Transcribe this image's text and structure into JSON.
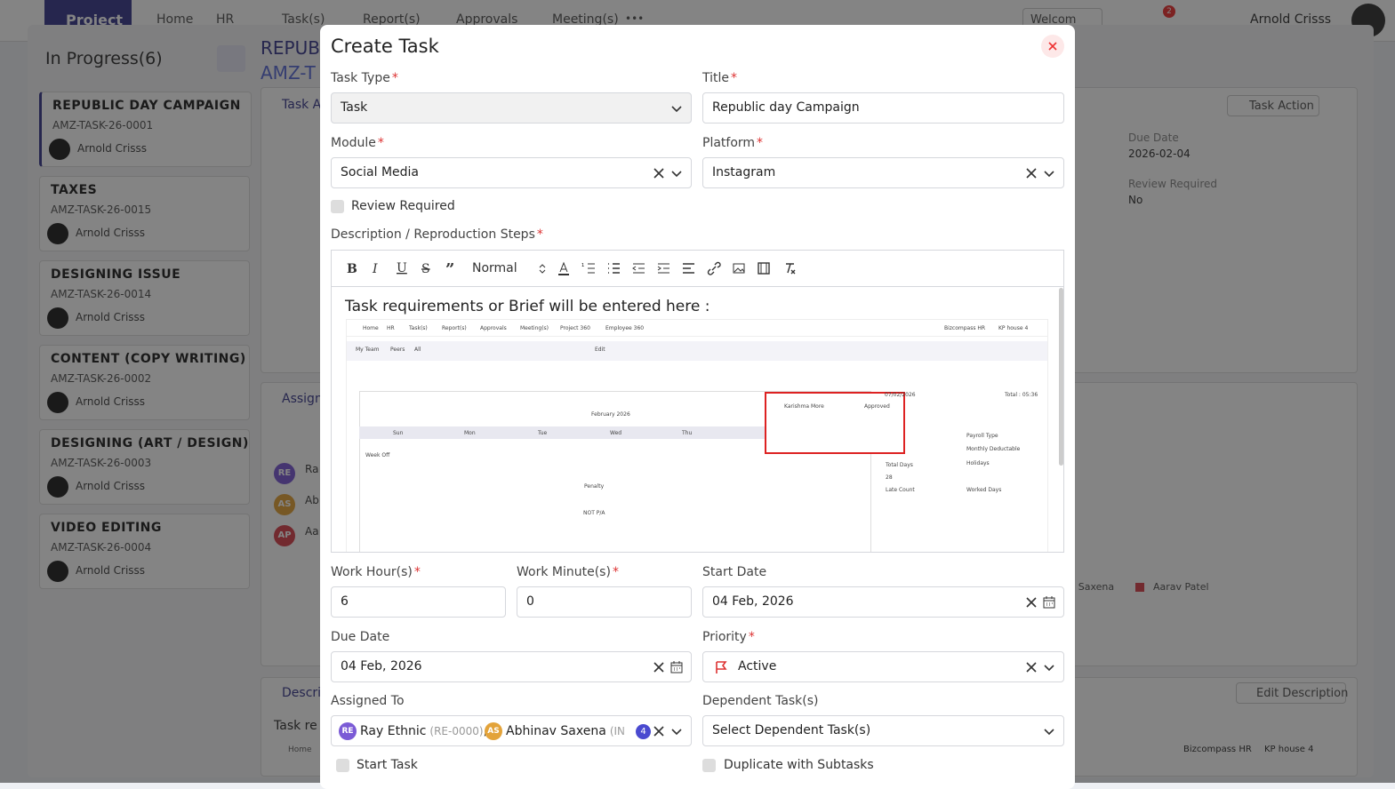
{
  "nav": {
    "brand": "Project",
    "items": [
      "Home",
      "HR",
      "Task(s)",
      "Report(s)",
      "Approvals",
      "Meeting(s)"
    ],
    "more": "•••",
    "workspace": "Welcom",
    "badge": "2",
    "user": "Arnold Crisss"
  },
  "sidebar": {
    "status": "In Progress(6)",
    "tasks": [
      {
        "title": "REPUBLIC DAY CAMPAIGN",
        "code": "AMZ-TASK-26-0001",
        "assignee": "Arnold Crisss"
      },
      {
        "title": "TAXES",
        "code": "AMZ-TASK-26-0015",
        "assignee": "Arnold Crisss"
      },
      {
        "title": "DESIGNING ISSUE",
        "code": "AMZ-TASK-26-0014",
        "assignee": "Arnold Crisss"
      },
      {
        "title": "CONTENT (COPY WRITING)",
        "code": "AMZ-TASK-26-0002",
        "assignee": "Arnold Crisss"
      },
      {
        "title": "DESIGNING (ART / DESIGN)",
        "code": "AMZ-TASK-26-0003",
        "assignee": "Arnold Crisss"
      },
      {
        "title": "VIDEO EDITING",
        "code": "AMZ-TASK-26-0004",
        "assignee": "Arnold Crisss"
      }
    ]
  },
  "detail": {
    "title_fragment": "REPUBL",
    "code_fragment": "AMZ-T",
    "tab_fragment": "Task A",
    "task_action": "Task Action",
    "due_date_label": "Due Date",
    "due_date": "2026-02-04",
    "review_label": "Review Required",
    "review_value": "No",
    "assign_fragment": "Assign",
    "assignees": [
      {
        "initials": "RE",
        "fragment": "Ra"
      },
      {
        "initials": "AS",
        "fragment": "Ab"
      },
      {
        "initials": "AP",
        "fragment": "Aa"
      }
    ],
    "legend": [
      "av Saxena",
      "Aarav Patel"
    ],
    "description_fragment": "Descri",
    "edit_description": "Edit Description",
    "description_text_fragment": "Task re",
    "preview": [
      "Home",
      "Bizcompass HR",
      "KP house 4"
    ]
  },
  "modal": {
    "title": "Create Task",
    "required_mark": "*",
    "fields": [
      {
        "label": "Task Type",
        "value": "Task",
        "required": true
      },
      {
        "label": "Title",
        "value": "Republic day Campaign",
        "required": true
      },
      {
        "label": "Module",
        "value": "Social Media",
        "required": true
      },
      {
        "label": "Platform",
        "value": "Instagram",
        "required": true
      },
      {
        "label": "Work Hour(s)",
        "value": "6",
        "required": true
      },
      {
        "label": "Work Minute(s)",
        "value": "0",
        "required": true
      },
      {
        "label": "Start Date",
        "value": "04 Feb, 2026",
        "required": false
      },
      {
        "label": "Due Date",
        "value": "04 Feb, 2026",
        "required": false
      },
      {
        "label": "Priority",
        "value": "Active",
        "required": true
      },
      {
        "label": "Dependent Task(s)",
        "value": "Select Dependent Task(s)",
        "required": false
      }
    ],
    "assigned": {
      "label": "Assigned To",
      "separator": ",",
      "more": "4",
      "people": [
        {
          "initials": "RE",
          "name": "Ray Ethnic",
          "code": "(RE-0000)"
        },
        {
          "initials": "AS",
          "name": "Abhinav Saxena",
          "code": "(IN"
        }
      ]
    },
    "checkboxes": [
      "Review Required",
      "Start Task",
      "Duplicate with Subtasks"
    ],
    "description": {
      "label": "Description / Reproduction Steps",
      "required": true,
      "format": "Normal",
      "text": "Task requirements or Brief will be entered here :"
    },
    "editor_image": [
      "Home",
      "HR",
      "Task(s)",
      "Report(s)",
      "Approvals",
      "Meeting(s)",
      "Project 360",
      "Employee 360",
      "Bizcompass HR",
      "KP house 4",
      "My Team",
      "Peers",
      "All",
      "Edit",
      "February 2026",
      "Sun",
      "Mon",
      "Tue",
      "Wed",
      "Thu",
      "Week Off",
      "Karishma More",
      "Approved",
      "07/02/2026",
      "Total : 05:36",
      "Payroll Type",
      "Monthly Deductable",
      "Total Days",
      "28",
      "Holidays",
      "Late Count",
      "Worked Days",
      "Penalty",
      "NOT P/A"
    ]
  }
}
